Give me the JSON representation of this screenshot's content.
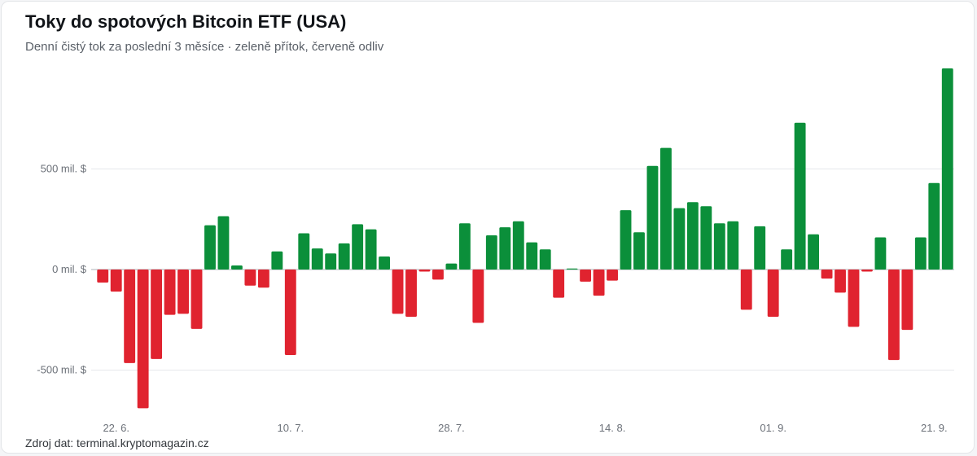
{
  "header": {
    "title": "Toky do spotových Bitcoin ETF (USA)",
    "subtitle": "Denní čistý tok za poslední 3 měsíce · zeleně přítok, červeně odliv"
  },
  "footer": {
    "source": "Zdroj dat: terminal.kryptomagazin.cz"
  },
  "colors": {
    "inflow": "#0b8f3a",
    "outflow": "#e0232f",
    "grid": "#e6e8eb",
    "zero_line": "#aeb3ba"
  },
  "chart_data": {
    "type": "bar",
    "title": "Toky do spotových Bitcoin ETF (USA)",
    "subtitle": "Denní čistý tok za poslední 3 měsíce · zeleně přítok, červeně odliv",
    "ylim": [
      -700,
      1000
    ],
    "y_ticks": [
      {
        "value": 500,
        "label": "500 mil. $"
      },
      {
        "value": 0,
        "label": "0 mil. $"
      },
      {
        "value": -500,
        "label": "-500 mil. $"
      }
    ],
    "x_ticks": [
      {
        "index": 1,
        "label": "22. 6."
      },
      {
        "index": 14,
        "label": "10. 7."
      },
      {
        "index": 26,
        "label": "28. 7."
      },
      {
        "index": 38,
        "label": "14. 8."
      },
      {
        "index": 50,
        "label": "01. 9."
      },
      {
        "index": 62,
        "label": "21. 9."
      }
    ],
    "grid": true,
    "values": [
      -65,
      -110,
      -465,
      -690,
      -445,
      -225,
      -220,
      -295,
      220,
      265,
      20,
      -80,
      -90,
      90,
      -425,
      180,
      105,
      80,
      130,
      225,
      200,
      65,
      -220,
      -235,
      -10,
      -50,
      30,
      230,
      -265,
      170,
      210,
      240,
      135,
      100,
      -140,
      5,
      -60,
      -130,
      -55,
      295,
      185,
      515,
      605,
      305,
      335,
      315,
      230,
      240,
      -200,
      215,
      -235,
      100,
      730,
      175,
      -45,
      -115,
      -285,
      -10,
      160,
      -450,
      -300,
      160,
      430,
      1000
    ]
  }
}
